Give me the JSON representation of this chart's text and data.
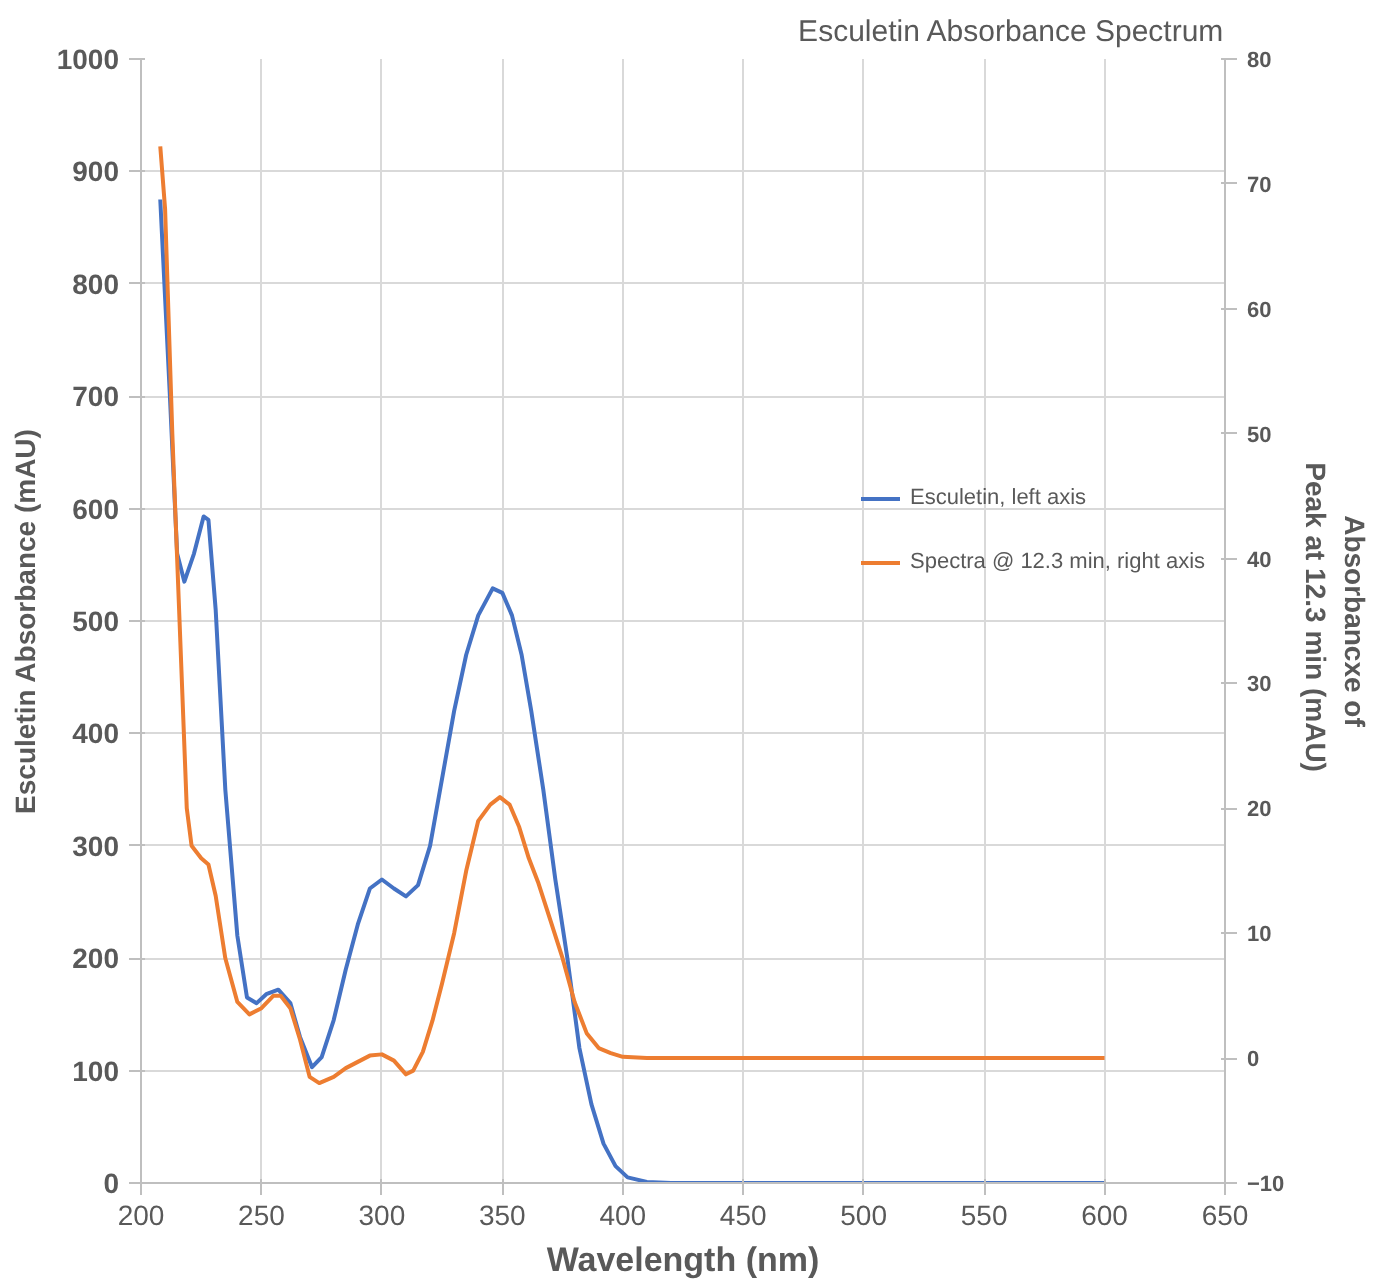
{
  "chart_data": {
    "type": "line",
    "title": "Esculetin Absorbance Spectrum",
    "xlabel": "Wavelength (nm)",
    "ylabel": "Esculetin Absorbance (mAU)",
    "y2label": "Absorbancxe of\nPeak at 12.3 min  (mAU)",
    "xlim": [
      200,
      650
    ],
    "xticks": [
      200,
      250,
      300,
      350,
      400,
      450,
      500,
      550,
      600,
      650
    ],
    "ylim": [
      0,
      1000
    ],
    "yticks": [
      0,
      100,
      200,
      300,
      400,
      500,
      600,
      700,
      800,
      900,
      1000
    ],
    "y2lim": [
      -10,
      80
    ],
    "y2ticks": [
      -10,
      0,
      10,
      20,
      30,
      40,
      50,
      60,
      70,
      80
    ],
    "grid": true,
    "legend": "right",
    "line_style": "solid",
    "marker": "none",
    "series": [
      {
        "name": "Esculetin, left axis",
        "color": "#4472c4",
        "x": [
          208,
          212,
          215,
          218,
          222,
          226,
          228,
          231,
          235,
          240,
          244,
          248,
          252,
          257,
          262,
          266,
          271,
          275,
          280,
          285,
          290,
          295,
          300,
          305,
          310,
          315,
          320,
          325,
          330,
          335,
          340,
          346,
          350,
          354,
          358,
          362,
          367,
          372,
          377,
          382,
          387,
          392,
          397,
          402,
          410,
          420,
          600
        ],
        "values": [
          875,
          700,
          560,
          535,
          560,
          593,
          590,
          510,
          350,
          220,
          165,
          160,
          168,
          172,
          160,
          130,
          103,
          112,
          145,
          190,
          230,
          262,
          270,
          262,
          255,
          265,
          300,
          360,
          420,
          470,
          505,
          529,
          525,
          505,
          470,
          420,
          350,
          270,
          200,
          120,
          70,
          35,
          15,
          5,
          1,
          0,
          0
        ]
      },
      {
        "name": "Spectra @ 12.3 min, right axis",
        "color": "#ed7d31",
        "axis": "y2",
        "x": [
          208,
          210,
          213,
          216,
          219,
          221,
          225,
          228,
          231,
          235,
          240,
          245,
          250,
          255,
          258,
          262,
          266,
          270,
          274,
          280,
          285,
          290,
          295,
          300,
          305,
          310,
          313,
          317,
          321,
          325,
          330,
          335,
          340,
          345,
          349,
          353,
          357,
          361,
          365,
          370,
          375,
          380,
          385,
          390,
          395,
          400,
          410,
          500,
          600
        ],
        "values": [
          73,
          68,
          50,
          35,
          20,
          17,
          16,
          15.5,
          13,
          8,
          4.5,
          3.5,
          4,
          5,
          5,
          4,
          1.5,
          -1.5,
          -2,
          -1.5,
          -0.8,
          -0.3,
          0.2,
          0.3,
          -0.2,
          -1.3,
          -1,
          0.5,
          3,
          6,
          10,
          15,
          19,
          20.3,
          20.9,
          20.3,
          18.5,
          16,
          14,
          11,
          8,
          4.5,
          2,
          0.8,
          0.4,
          0.1,
          0,
          0,
          0
        ]
      }
    ]
  }
}
